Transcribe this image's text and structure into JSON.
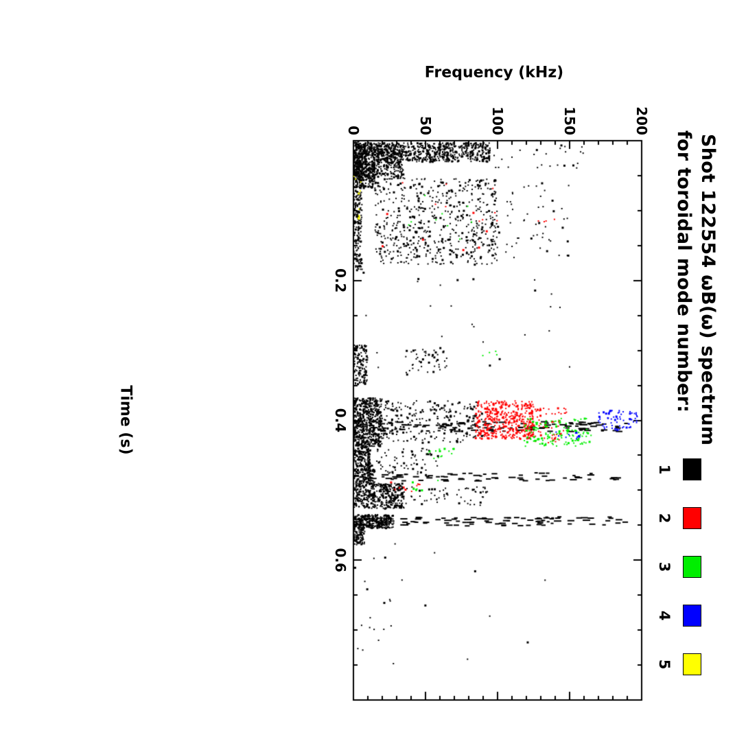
{
  "title": {
    "line1": "Shot 122554 ωB(ω) spectrum",
    "line2": "for toroidal mode number:"
  },
  "legend": [
    {
      "label": "1",
      "color": "#000000"
    },
    {
      "label": "2",
      "color": "#ff0000"
    },
    {
      "label": "3",
      "color": "#00ee00"
    },
    {
      "label": "4",
      "color": "#0000ff"
    },
    {
      "label": "5",
      "color": "#ffff00"
    }
  ],
  "chart_data": {
    "type": "scatter",
    "title": "Shot 122554 ωB(ω) spectrum for toroidal mode number: 1-5",
    "xlabel": "Time (s)",
    "ylabel": "Frequency (kHz)",
    "xlim": [
      0,
      0.8
    ],
    "ylim": [
      0,
      200
    ],
    "xticks": [
      0.2,
      0.4,
      0.6
    ],
    "yticks": [
      0,
      50,
      100,
      150,
      200
    ],
    "x_minor_step": 0.05,
    "y_minor_step": 10,
    "grid": false,
    "legend_position": "top-right-of-title",
    "orientation": "figure rotated 90 degrees clockwise on page",
    "colors": {
      "black": "#000000",
      "red": "#ff0000",
      "green": "#00ee00",
      "blue": "#0000ff",
      "yellow": "#ffff00"
    },
    "seed": 42,
    "clusters": [
      {
        "t": [
          0.003,
          0.03
        ],
        "f": [
          0,
          95
        ],
        "color": "black",
        "n": 700
      },
      {
        "t": [
          0.003,
          0.055
        ],
        "f": [
          0,
          35
        ],
        "color": "black",
        "n": 450
      },
      {
        "t": [
          0.03,
          0.068
        ],
        "f": [
          0,
          15
        ],
        "color": "black",
        "n": 200
      },
      {
        "t": [
          0.005,
          0.04
        ],
        "f": [
          95,
          160
        ],
        "color": "black",
        "n": 25
      },
      {
        "t": [
          0.054,
          0.177
        ],
        "f": [
          15,
          100
        ],
        "color": "black",
        "n": 600
      },
      {
        "t": [
          0.06,
          0.17
        ],
        "f": [
          95,
          150
        ],
        "color": "black",
        "n": 55
      },
      {
        "t": [
          0.0,
          0.185
        ],
        "f": [
          0,
          6
        ],
        "color": "black",
        "n": 300
      },
      {
        "t": [
          0.06,
          0.16
        ],
        "f": [
          20,
          100
        ],
        "color": "red",
        "n": 16
      },
      {
        "t": [
          0.11,
          0.128
        ],
        "f": [
          128,
          145
        ],
        "color": "red",
        "n": 4
      },
      {
        "t": [
          0.07,
          0.15
        ],
        "f": [
          30,
          90
        ],
        "color": "green",
        "n": 9
      },
      {
        "t": [
          0.05,
          0.12
        ],
        "f": [
          0,
          6
        ],
        "color": "yellow",
        "n": 10
      },
      {
        "t": [
          0.185,
          0.34
        ],
        "f": [
          0,
          150
        ],
        "color": "black",
        "n": 28
      },
      {
        "t": [
          0.292,
          0.348
        ],
        "f": [
          0,
          10
        ],
        "color": "black",
        "n": 130
      },
      {
        "t": [
          0.298,
          0.335
        ],
        "f": [
          35,
          65
        ],
        "color": "black",
        "n": 45
      },
      {
        "t": [
          0.3,
          0.312
        ],
        "f": [
          88,
          100
        ],
        "color": "green",
        "n": 4
      },
      {
        "t": [
          0.368,
          0.437
        ],
        "f": [
          0,
          20
        ],
        "color": "black",
        "n": 520
      },
      {
        "t": [
          0.372,
          0.432
        ],
        "f": [
          20,
          90
        ],
        "color": "black",
        "n": 240
      },
      {
        "t": [
          0.402,
          0.416
        ],
        "f": [
          0,
          190
        ],
        "color": "black",
        "n": 110,
        "style": "dash"
      },
      {
        "t": [
          0.372,
          0.426
        ],
        "f": [
          85,
          125
        ],
        "color": "red",
        "n": 420
      },
      {
        "t": [
          0.382,
          0.432
        ],
        "f": [
          125,
          148
        ],
        "color": "red",
        "n": 55
      },
      {
        "t": [
          0.396,
          0.437
        ],
        "f": [
          118,
          165
        ],
        "color": "green",
        "n": 130
      },
      {
        "t": [
          0.44,
          0.458
        ],
        "f": [
          50,
          70
        ],
        "color": "green",
        "n": 14
      },
      {
        "t": [
          0.386,
          0.414
        ],
        "f": [
          170,
          198
        ],
        "color": "blue",
        "n": 70
      },
      {
        "t": [
          0.416,
          0.428
        ],
        "f": [
          140,
          162
        ],
        "color": "blue",
        "n": 10
      },
      {
        "t": [
          0.437,
          0.472
        ],
        "f": [
          0,
          12
        ],
        "color": "black",
        "n": 160
      },
      {
        "t": [
          0.44,
          0.478
        ],
        "f": [
          12,
          60
        ],
        "color": "black",
        "n": 70
      },
      {
        "t": [
          0.475,
          0.487
        ],
        "f": [
          0,
          185
        ],
        "color": "black",
        "n": 70,
        "style": "dash"
      },
      {
        "t": [
          0.47,
          0.492
        ],
        "f": [
          0,
          15
        ],
        "color": "black",
        "n": 120
      },
      {
        "t": [
          0.486,
          0.505
        ],
        "f": [
          25,
          50
        ],
        "color": "red",
        "n": 12
      },
      {
        "t": [
          0.486,
          0.5
        ],
        "f": [
          40,
          60
        ],
        "color": "green",
        "n": 6
      },
      {
        "t": [
          0.49,
          0.526
        ],
        "f": [
          0,
          35
        ],
        "color": "black",
        "n": 380
      },
      {
        "t": [
          0.495,
          0.522
        ],
        "f": [
          35,
          95
        ],
        "color": "black",
        "n": 60
      },
      {
        "t": [
          0.535,
          0.554
        ],
        "f": [
          0,
          28
        ],
        "color": "black",
        "n": 300
      },
      {
        "t": [
          0.538,
          0.551
        ],
        "f": [
          0,
          190
        ],
        "color": "black",
        "n": 90,
        "style": "dash"
      },
      {
        "t": [
          0.553,
          0.578
        ],
        "f": [
          0,
          8
        ],
        "color": "black",
        "n": 90
      },
      {
        "t": [
          0.558,
          0.762
        ],
        "f": [
          0,
          35
        ],
        "color": "black",
        "n": 22
      },
      {
        "t": [
          0.58,
          0.75
        ],
        "f": [
          40,
          150
        ],
        "color": "black",
        "n": 7
      }
    ]
  }
}
